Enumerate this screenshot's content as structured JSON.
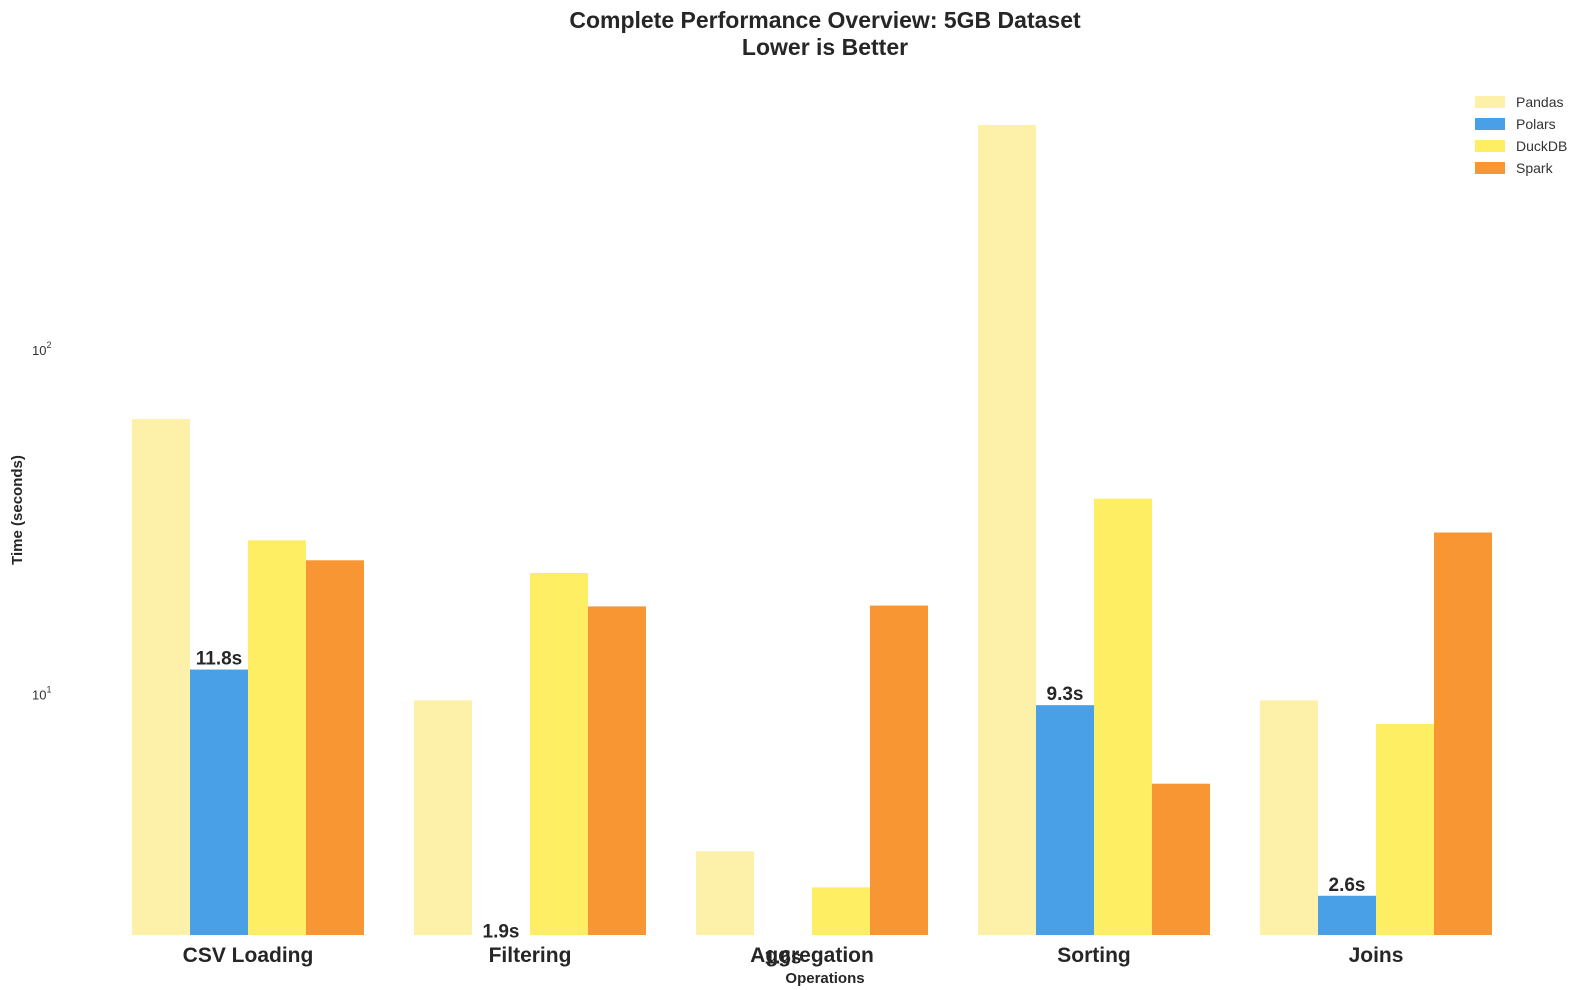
{
  "chart_data": {
    "type": "bar",
    "title": [
      "Complete Performance Overview: 5GB Dataset",
      "Lower is Better"
    ],
    "xlabel": "Operations",
    "ylabel": "Time (seconds)",
    "yscale": "log",
    "ylim": [
      2,
      550
    ],
    "yticks": [
      {
        "value": 10,
        "base": "10",
        "exp": "1"
      },
      {
        "value": 100,
        "base": "10",
        "exp": "2"
      }
    ],
    "categories": [
      "CSV Loading",
      "Filtering",
      "Aggregation",
      "Sorting",
      "Joins"
    ],
    "series": [
      {
        "name": "Pandas",
        "color": "#fdf0a8",
        "values": [
          63,
          9.6,
          3.5,
          450,
          9.6
        ]
      },
      {
        "name": "Polars",
        "color": "#4aa0e6",
        "values": [
          11.8,
          1.9,
          1.6,
          9.3,
          2.6
        ]
      },
      {
        "name": "DuckDB",
        "color": "#fdee64",
        "values": [
          28,
          22.5,
          2.75,
          37,
          8.2
        ]
      },
      {
        "name": "Spark",
        "color": "#f79633",
        "values": [
          24.5,
          18,
          18.1,
          5.5,
          29.5
        ]
      }
    ],
    "data_labels": [
      {
        "series": "Polars",
        "category": "CSV Loading",
        "text": "11.8s"
      },
      {
        "series": "Polars",
        "category": "Filtering",
        "text": "1.9s"
      },
      {
        "series": "Polars",
        "category": "Aggregation",
        "text": "1.6s"
      },
      {
        "series": "Polars",
        "category": "Sorting",
        "text": "9.3s"
      },
      {
        "series": "Polars",
        "category": "Joins",
        "text": "2.6s"
      }
    ],
    "legend_position": "top-right",
    "grid": false
  }
}
